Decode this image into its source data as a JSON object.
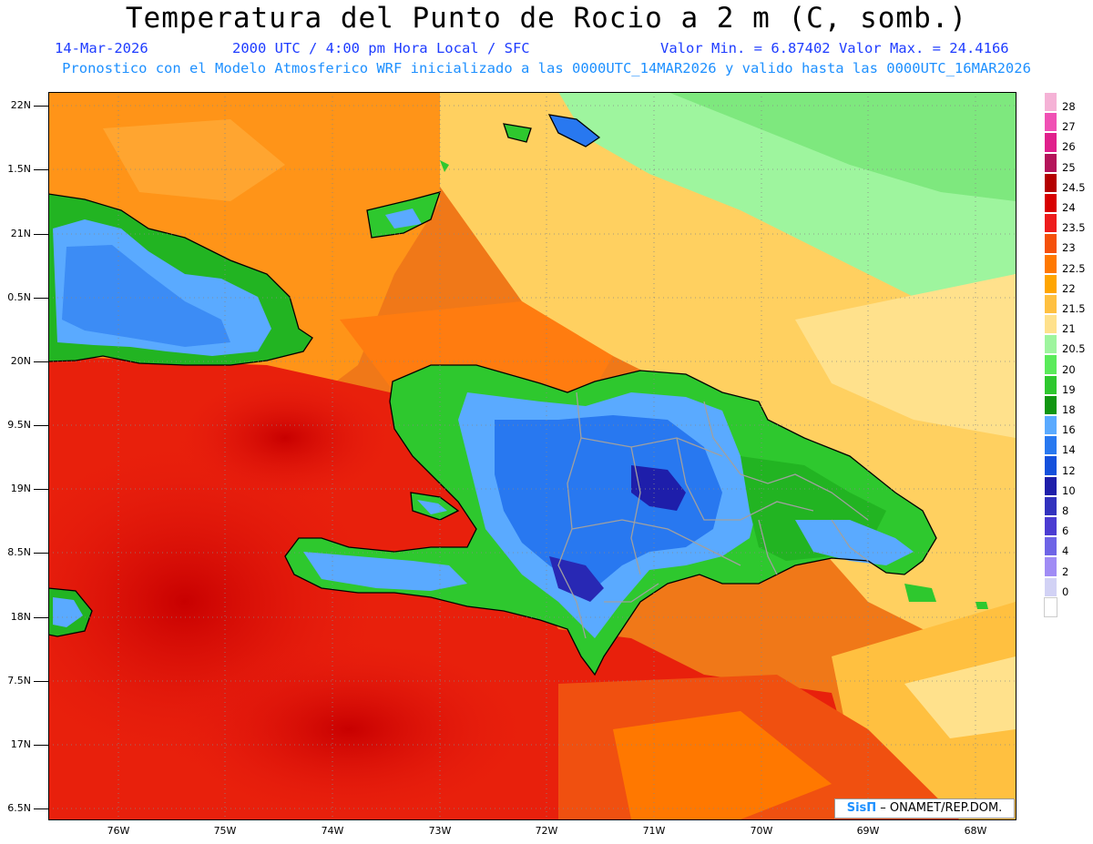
{
  "title": "Temperatura del Punto de Rocio a 2 m (C, somb.)",
  "header": {
    "date": "14-Mar-2026",
    "time": "2000 UTC / 4:00 pm Hora Local / SFC",
    "min_max": "Valor Min. = 6.87402  Valor Max. = 24.4166",
    "model_line": "Pronostico con el Modelo Atmosferico WRF inicializado a las 0000UTC_14MAR2026 y valido hasta las  0000UTC_16MAR2026"
  },
  "axes": {
    "y_labels": [
      "22N",
      "1.5N",
      "21N",
      "0.5N",
      "20N",
      "9.5N",
      "19N",
      "8.5N",
      "18N",
      "7.5N",
      "17N",
      "6.5N"
    ],
    "x_labels": [
      "76W",
      "75W",
      "74W",
      "73W",
      "72W",
      "71W",
      "70W",
      "69W",
      "68W"
    ]
  },
  "colorbar": {
    "labels": [
      "28",
      "27",
      "26",
      "25",
      "24.5",
      "24",
      "23.5",
      "23",
      "22.5",
      "22",
      "21.5",
      "21",
      "20.5",
      "20",
      "19",
      "18",
      "16",
      "14",
      "12",
      "10",
      "8",
      "6",
      "4",
      "2",
      "0"
    ],
    "colors": [
      "#f5b2d6",
      "#f050b4",
      "#e0208c",
      "#b4145a",
      "#b40000",
      "#d80000",
      "#ee1c1c",
      "#f5500a",
      "#ff7800",
      "#ffa500",
      "#ffc040",
      "#ffe18c",
      "#9ef59e",
      "#5aeb5a",
      "#2ec82e",
      "#109610",
      "#5aaaff",
      "#2878f0",
      "#1450dc",
      "#1e1eaa",
      "#3232be",
      "#4b3cd2",
      "#6e64e6",
      "#a08cf5",
      "#d2d2f5"
    ]
  },
  "credit": {
    "logo": "SisΠ",
    "text": " – ONAMET/REP.DOM."
  }
}
